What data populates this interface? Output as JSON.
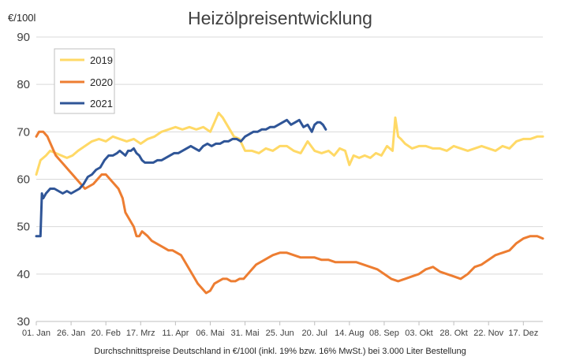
{
  "chart_data": {
    "type": "line",
    "title": "Heizölpreisentwicklung",
    "ylabel": "€/100l",
    "xlabel": "Durchschnittspreise Deutschland in €/100l (inkl. 19% bzw. 16%  MwSt.) bei 3.000 Liter Bestellung",
    "ylim": [
      30,
      90
    ],
    "yticks": [
      30,
      40,
      50,
      60,
      70,
      80,
      90
    ],
    "xlim": [
      0,
      364
    ],
    "xticks": [
      {
        "label": "01. Jan",
        "day": 0
      },
      {
        "label": "26. Jan",
        "day": 25
      },
      {
        "label": "20. Feb",
        "day": 50
      },
      {
        "label": "17. Mrz",
        "day": 75
      },
      {
        "label": "11. Apr",
        "day": 100
      },
      {
        "label": "06. Mai",
        "day": 125
      },
      {
        "label": "31. Mai",
        "day": 150
      },
      {
        "label": "25. Jun",
        "day": 175
      },
      {
        "label": "20. Jul",
        "day": 200
      },
      {
        "label": "14. Aug",
        "day": 225
      },
      {
        "label": "08. Sep",
        "day": 250
      },
      {
        "label": "03. Okt",
        "day": 275
      },
      {
        "label": "28. Okt",
        "day": 300
      },
      {
        "label": "22. Nov",
        "day": 325
      },
      {
        "label": "17. Dez",
        "day": 350
      }
    ],
    "grid": true,
    "legend_position": "top-left",
    "series": [
      {
        "name": "2019",
        "color": "#ffd966",
        "x": [
          0,
          3,
          7,
          10,
          14,
          18,
          22,
          26,
          30,
          35,
          40,
          45,
          50,
          55,
          60,
          65,
          70,
          75,
          80,
          85,
          90,
          95,
          100,
          105,
          110,
          115,
          120,
          125,
          128,
          131,
          134,
          138,
          142,
          146,
          150,
          155,
          160,
          165,
          170,
          175,
          180,
          185,
          190,
          195,
          200,
          205,
          210,
          214,
          218,
          222,
          225,
          228,
          232,
          236,
          240,
          244,
          248,
          252,
          256,
          258,
          260,
          262,
          265,
          270,
          275,
          280,
          285,
          290,
          295,
          300,
          305,
          310,
          315,
          320,
          325,
          330,
          335,
          340,
          345,
          350,
          355,
          360,
          364
        ],
        "values": [
          61,
          64,
          65,
          66,
          65.5,
          65,
          64.5,
          65,
          66,
          67,
          68,
          68.5,
          68,
          69,
          68.5,
          68,
          68.5,
          67.5,
          68.5,
          69,
          70,
          70.5,
          71,
          70.5,
          71,
          70.5,
          71,
          70,
          72,
          74,
          73,
          71,
          69,
          68.5,
          66,
          66,
          65.5,
          66.5,
          66,
          67,
          67,
          66,
          65.5,
          68,
          66,
          65.5,
          66,
          65,
          66.5,
          66,
          63,
          65,
          64.5,
          65,
          64.5,
          65.5,
          65,
          67,
          66,
          73,
          69,
          68.5,
          67.5,
          66.5,
          67,
          67,
          66.5,
          66.5,
          66,
          67,
          66.5,
          66,
          66.5,
          67,
          66.5,
          66,
          67,
          66.5,
          68,
          68.5,
          68.5,
          69,
          69
        ]
      },
      {
        "name": "2020",
        "color": "#ed7d31",
        "x": [
          0,
          2,
          5,
          8,
          11,
          14,
          17,
          20,
          23,
          26,
          29,
          32,
          35,
          38,
          41,
          44,
          47,
          50,
          53,
          56,
          59,
          62,
          64,
          66,
          68,
          70,
          72,
          74,
          76,
          78,
          80,
          83,
          86,
          89,
          92,
          95,
          98,
          101,
          104,
          107,
          110,
          113,
          116,
          119,
          122,
          125,
          128,
          131,
          134,
          137,
          140,
          143,
          146,
          149,
          152,
          155,
          158,
          161,
          164,
          167,
          170,
          175,
          180,
          185,
          190,
          195,
          200,
          205,
          210,
          215,
          220,
          225,
          230,
          235,
          240,
          245,
          250,
          255,
          260,
          265,
          270,
          275,
          280,
          285,
          290,
          295,
          300,
          305,
          310,
          315,
          320,
          325,
          330,
          335,
          340,
          345,
          350,
          355,
          360,
          364
        ],
        "values": [
          69,
          70,
          70,
          69,
          67,
          65,
          64,
          63,
          62,
          61,
          60,
          59,
          58,
          58.5,
          59,
          60,
          61,
          61,
          60,
          59,
          58,
          56,
          53,
          52,
          51,
          50,
          48,
          48,
          49,
          48.5,
          48,
          47,
          46.5,
          46,
          45.5,
          45,
          45,
          44.5,
          44,
          42.5,
          41,
          39.5,
          38,
          37,
          36,
          36.5,
          38,
          38.5,
          39,
          39,
          38.5,
          38.5,
          39,
          39,
          40,
          41,
          42,
          42.5,
          43,
          43.5,
          44,
          44.5,
          44.5,
          44,
          43.5,
          43.5,
          43.5,
          43,
          43,
          42.5,
          42.5,
          42.5,
          42.5,
          42,
          41.5,
          41,
          40,
          39,
          38.5,
          39,
          39.5,
          40,
          41,
          41.5,
          40.5,
          40,
          39.5,
          39,
          40,
          41.5,
          42,
          43,
          44,
          44.5,
          45,
          46.5,
          47.5,
          48,
          48,
          47.5
        ]
      },
      {
        "name": "2021",
        "color": "#2f5597",
        "x": [
          0,
          3,
          4,
          5,
          7,
          10,
          13,
          16,
          19,
          22,
          25,
          28,
          31,
          34,
          37,
          40,
          43,
          46,
          49,
          52,
          55,
          58,
          60,
          62,
          64,
          66,
          68,
          70,
          72,
          74,
          76,
          78,
          81,
          84,
          87,
          90,
          93,
          96,
          99,
          102,
          105,
          108,
          111,
          114,
          117,
          120,
          123,
          126,
          129,
          132,
          135,
          138,
          141,
          144,
          147,
          150,
          153,
          156,
          159,
          162,
          165,
          168,
          171,
          174,
          177,
          180,
          183,
          186,
          189,
          192,
          195,
          198,
          200,
          202,
          204,
          206,
          208
        ],
        "values": [
          48,
          48,
          57,
          56,
          57,
          58,
          58,
          57.5,
          57,
          57.5,
          57,
          57.5,
          58,
          59,
          60.5,
          61,
          62,
          62.5,
          64,
          65,
          65,
          65.5,
          66,
          65.5,
          65,
          66,
          66,
          66.5,
          65.5,
          65,
          64,
          63.5,
          63.5,
          63.5,
          64,
          64,
          64.5,
          65,
          65.5,
          65.5,
          66,
          66.5,
          67,
          66.5,
          66,
          67,
          67.5,
          67,
          67.5,
          67.5,
          68,
          68,
          68.5,
          68.5,
          68,
          69,
          69.5,
          70,
          70,
          70.5,
          70.5,
          71,
          71,
          71.5,
          72,
          72.5,
          71.5,
          72,
          72.5,
          71,
          71.5,
          70,
          71.5,
          72,
          72,
          71.5,
          70.5
        ]
      }
    ]
  }
}
